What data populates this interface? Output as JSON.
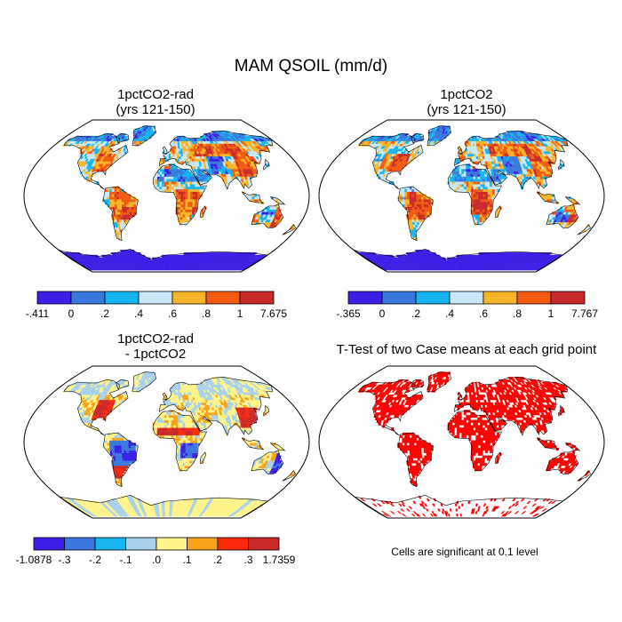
{
  "title": "MAM QSOIL (mm/d)",
  "panels": [
    {
      "id": "p1",
      "title_line1": "1pctCO2-rad",
      "title_line2": "(yrs 121-150)",
      "style": "p1"
    },
    {
      "id": "p2",
      "title_line1": "1pctCO2",
      "title_line2": "(yrs 121-150)",
      "style": "p2"
    },
    {
      "id": "p3",
      "title_line1": "1pctCO2-rad",
      "title_line2": "- 1pctCO2",
      "style": "diff"
    },
    {
      "id": "p4",
      "title_line1": "T-Test of two Case means at each grid point",
      "title_line2": "",
      "style": "ttest"
    }
  ],
  "colorbars": [
    {
      "id": "cb1",
      "colors": [
        "#3b1fe6",
        "#3a78dd",
        "#16b4f0",
        "#c8e8f8",
        "#f7b62a",
        "#f25a10",
        "#c92a2a"
      ],
      "labels": [
        "-.411",
        "0",
        ".2",
        ".4",
        ".6",
        ".8",
        "1",
        "7.675"
      ]
    },
    {
      "id": "cb2",
      "colors": [
        "#3b1fe6",
        "#3a78dd",
        "#16b4f0",
        "#c8e8f8",
        "#f7b62a",
        "#f25a10",
        "#c92a2a"
      ],
      "labels": [
        "-.365",
        "0",
        ".2",
        ".4",
        ".6",
        ".8",
        "1",
        "7.767"
      ]
    },
    {
      "id": "cb3",
      "colors": [
        "#3b1fe6",
        "#3a78dd",
        "#16b4f0",
        "#a8d2ec",
        "#fff38a",
        "#f9a319",
        "#fb2a0d",
        "#c92a2a"
      ],
      "labels": [
        "-1.0878",
        "-.3",
        "-.2",
        "-.1",
        ".0",
        ".1",
        ".2",
        ".3",
        "1.7359"
      ]
    }
  ],
  "significance_note": "Cells are significant at 0.1 level",
  "colors": {
    "significant": "#ff0000"
  }
}
